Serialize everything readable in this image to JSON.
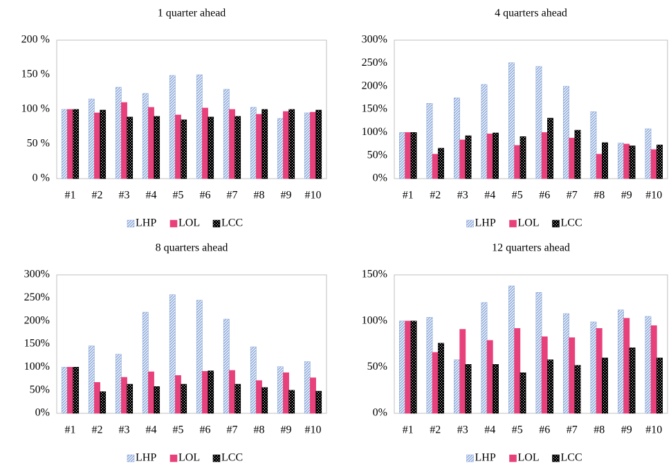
{
  "chart_data": [
    {
      "type": "bar",
      "title": "1 quarter ahead",
      "categories": [
        "#1",
        "#2",
        "#3",
        "#4",
        "#5",
        "#6",
        "#7",
        "#8",
        "#9",
        "#10"
      ],
      "series": [
        {
          "name": "LHP",
          "color": "#8eaadb",
          "values": [
            100,
            115,
            132,
            123,
            149,
            150,
            129,
            103,
            87,
            95
          ]
        },
        {
          "name": "LOL",
          "color": "#e8407a",
          "values": [
            100,
            95,
            110,
            103,
            92,
            102,
            100,
            93,
            97,
            96
          ]
        },
        {
          "name": "LCC",
          "color": "#000000",
          "values": [
            100,
            99,
            89,
            90,
            85,
            89,
            90,
            100,
            100,
            99
          ]
        }
      ],
      "ylim": [
        0,
        200
      ],
      "yticks": [
        {
          "value": 0,
          "label": "0 %"
        },
        {
          "value": 50,
          "label": "50 %"
        },
        {
          "value": 100,
          "label": "100 %"
        },
        {
          "value": 150,
          "label": "150 %"
        },
        {
          "value": 200,
          "label": "200 %"
        }
      ]
    },
    {
      "type": "bar",
      "title": "4 quarters ahead",
      "categories": [
        "#1",
        "#2",
        "#3",
        "#4",
        "#5",
        "#6",
        "#7",
        "#8",
        "#9",
        "#10"
      ],
      "series": [
        {
          "name": "LHP",
          "color": "#8eaadb",
          "values": [
            100,
            163,
            175,
            204,
            251,
            243,
            200,
            145,
            77,
            108
          ]
        },
        {
          "name": "LOL",
          "color": "#e8407a",
          "values": [
            100,
            53,
            84,
            97,
            72,
            100,
            88,
            53,
            75,
            63
          ]
        },
        {
          "name": "LCC",
          "color": "#000000",
          "values": [
            100,
            66,
            93,
            99,
            91,
            131,
            105,
            78,
            71,
            73
          ]
        }
      ],
      "ylim": [
        0,
        300
      ],
      "yticks": [
        {
          "value": 0,
          "label": "0%"
        },
        {
          "value": 50,
          "label": "50%"
        },
        {
          "value": 100,
          "label": "100%"
        },
        {
          "value": 150,
          "label": "150%"
        },
        {
          "value": 200,
          "label": "200%"
        },
        {
          "value": 250,
          "label": "250%"
        },
        {
          "value": 300,
          "label": "300%"
        }
      ]
    },
    {
      "type": "bar",
      "title": "8 quarters ahead",
      "categories": [
        "#1",
        "#2",
        "#3",
        "#4",
        "#5",
        "#6",
        "#7",
        "#8",
        "#9",
        "#10"
      ],
      "series": [
        {
          "name": "LHP",
          "color": "#8eaadb",
          "values": [
            100,
            146,
            128,
            219,
            257,
            245,
            204,
            144,
            101,
            112
          ]
        },
        {
          "name": "LOL",
          "color": "#e8407a",
          "values": [
            100,
            67,
            78,
            90,
            82,
            91,
            93,
            71,
            88,
            77
          ]
        },
        {
          "name": "LCC",
          "color": "#000000",
          "values": [
            100,
            47,
            63,
            58,
            63,
            92,
            63,
            56,
            50,
            48
          ]
        }
      ],
      "ylim": [
        0,
        300
      ],
      "yticks": [
        {
          "value": 0,
          "label": "0%"
        },
        {
          "value": 50,
          "label": "50%"
        },
        {
          "value": 100,
          "label": "100%"
        },
        {
          "value": 150,
          "label": "150%"
        },
        {
          "value": 200,
          "label": "200%"
        },
        {
          "value": 250,
          "label": "250%"
        },
        {
          "value": 300,
          "label": "300%"
        }
      ]
    },
    {
      "type": "bar",
      "title": "12 quarters ahead",
      "categories": [
        "#1",
        "#2",
        "#3",
        "#4",
        "#5",
        "#6",
        "#7",
        "#8",
        "#9",
        "#10"
      ],
      "series": [
        {
          "name": "LHP",
          "color": "#8eaadb",
          "values": [
            100,
            104,
            58,
            120,
            138,
            131,
            108,
            99,
            112,
            105
          ]
        },
        {
          "name": "LOL",
          "color": "#e8407a",
          "values": [
            100,
            66,
            91,
            79,
            92,
            83,
            82,
            92,
            103,
            95
          ]
        },
        {
          "name": "LCC",
          "color": "#000000",
          "values": [
            100,
            76,
            53,
            53,
            44,
            58,
            52,
            60,
            71,
            60
          ]
        }
      ],
      "ylim": [
        0,
        150
      ],
      "yticks": [
        {
          "value": 0,
          "label": "0%"
        },
        {
          "value": 50,
          "label": "50%"
        },
        {
          "value": 100,
          "label": "100%"
        },
        {
          "value": 150,
          "label": "150%"
        }
      ]
    }
  ]
}
